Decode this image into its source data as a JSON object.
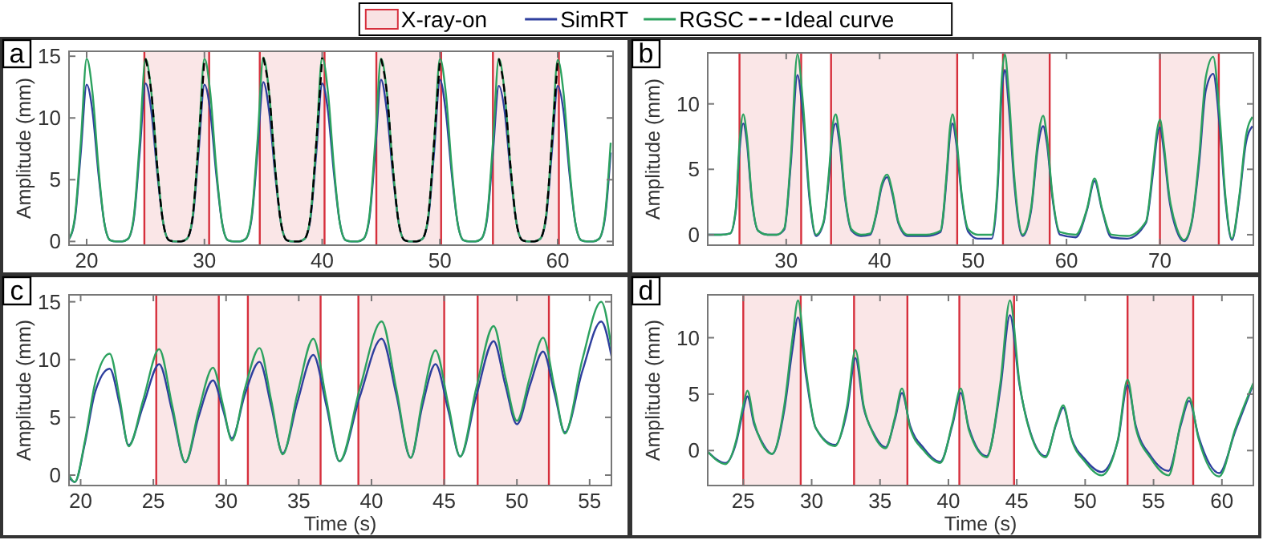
{
  "chart_data": [
    {
      "type": "line",
      "title": "a",
      "ylabel": "Amplitude (mm)",
      "legend": "top",
      "xlim": [
        18.5,
        64.7
      ],
      "xticks": [
        20,
        30,
        40,
        50,
        60
      ],
      "ylim": [
        -0.3,
        15.4
      ],
      "yticks": [
        0,
        5,
        10,
        15
      ],
      "x": [
        18.5,
        19,
        19.5,
        20,
        20.5,
        21,
        21.5,
        22,
        22.5,
        23,
        23.5,
        24,
        24.5,
        25,
        25.5,
        26,
        26.5,
        27,
        27.5,
        28,
        28.5,
        29,
        29.5,
        30,
        30.5,
        31,
        31.5,
        32,
        32.5,
        33,
        33.5,
        34,
        34.5,
        35,
        35.5,
        36,
        36.5,
        37,
        37.5,
        38,
        38.5,
        39,
        39.5,
        40,
        40.5,
        41,
        41.5,
        42,
        42.5,
        43,
        43.5,
        44,
        44.5,
        45,
        45.5,
        46,
        46.5,
        47,
        47.5,
        48,
        48.5,
        49,
        49.5,
        50,
        50.5,
        51,
        51.5,
        52,
        52.5,
        53,
        53.5,
        54,
        54.5,
        55,
        55.5,
        56,
        56.5,
        57,
        57.5,
        58,
        58.5,
        59,
        59.5,
        60,
        60.5,
        61,
        61.5,
        62,
        62.5,
        63,
        63.5,
        64,
        64.5
      ],
      "bands": [
        {
          "axis": "x",
          "from": 24.9,
          "to": 30.4,
          "label": "X-ray-on",
          "color": "#d62f3c"
        },
        {
          "axis": "x",
          "from": 34.7,
          "to": 40.2,
          "color": "#d62f3c"
        },
        {
          "axis": "x",
          "from": 44.6,
          "to": 50.1,
          "color": "#d62f3c"
        },
        {
          "axis": "x",
          "from": 54.5,
          "to": 60.1,
          "color": "#d62f3c"
        }
      ],
      "series": [
        {
          "name": "SimRT",
          "color": "#2e3f9e",
          "values": [
            0.2,
            1.8,
            7.2,
            12.7,
            10.5,
            5.5,
            1.5,
            0.1,
            0,
            0,
            0.2,
            1.8,
            7.2,
            12.8,
            10.5,
            5.5,
            1.5,
            0.1,
            0,
            0,
            0.2,
            1.8,
            7.2,
            12.7,
            10.5,
            5.5,
            1.5,
            0.1,
            0,
            0,
            0.2,
            1.8,
            7.2,
            12.9,
            10.5,
            5.5,
            1.5,
            0.1,
            0,
            0,
            0.2,
            1.8,
            7.2,
            12.8,
            10.5,
            5.5,
            1.5,
            0.1,
            0,
            0,
            0.2,
            1.8,
            7.2,
            13.1,
            10.5,
            5.5,
            1.5,
            0.1,
            0,
            0,
            0.2,
            1.8,
            7.2,
            13.1,
            10.5,
            5.5,
            1.5,
            0.1,
            0,
            0,
            0.2,
            1.8,
            7.2,
            12.6,
            10.5,
            5.5,
            1.5,
            0.1,
            0,
            0,
            0.2,
            1.8,
            7.2,
            12.6,
            10.5,
            5.5,
            1.5,
            0.1,
            0,
            0,
            0.2,
            1.8,
            7.2
          ]
        },
        {
          "name": "RGSC",
          "color": "#2ca25f",
          "values": [
            0.2,
            2,
            8,
            14.8,
            12,
            6,
            1.5,
            0.1,
            0,
            0,
            0.2,
            2,
            8,
            14.8,
            12,
            6,
            1.5,
            0.1,
            0,
            0,
            0.2,
            2,
            8,
            14.8,
            12,
            6,
            1.5,
            0.1,
            0,
            0,
            0.2,
            2,
            8,
            14.9,
            12,
            6,
            1.5,
            0.1,
            0,
            0,
            0.2,
            2,
            8,
            14.9,
            12,
            6,
            1.5,
            0.1,
            0,
            0,
            0.2,
            2,
            8,
            14.8,
            12,
            6,
            1.5,
            0.1,
            0,
            0,
            0.2,
            2,
            8,
            14.8,
            12,
            6,
            1.5,
            0.1,
            0,
            0,
            0.2,
            2,
            8,
            14.8,
            12,
            6,
            1.5,
            0.1,
            0,
            0,
            0.2,
            2,
            8,
            14.7,
            12,
            6,
            1.5,
            0.1,
            0,
            0,
            0.2,
            2,
            8
          ]
        },
        {
          "name": "Ideal curve",
          "color": "#000000",
          "line_style": "dashed",
          "values": [
            null,
            null,
            null,
            null,
            null,
            null,
            null,
            null,
            null,
            null,
            null,
            null,
            null,
            14.8,
            12,
            6,
            1.5,
            0.1,
            0,
            0,
            0.2,
            2,
            8,
            14.8,
            null,
            null,
            null,
            null,
            null,
            null,
            null,
            null,
            null,
            14.9,
            12,
            6,
            1.5,
            0.1,
            0,
            0,
            0.2,
            2,
            8,
            14.9,
            null,
            null,
            null,
            null,
            null,
            null,
            null,
            null,
            null,
            14.8,
            12,
            6,
            1.5,
            0.1,
            0,
            0,
            0.2,
            2,
            8,
            14.8,
            null,
            null,
            null,
            null,
            null,
            null,
            null,
            null,
            null,
            14.8,
            12,
            6,
            1.5,
            0.1,
            0,
            0,
            0.2,
            2,
            8,
            14.7,
            null,
            null,
            null,
            null,
            null,
            null,
            null,
            null,
            null
          ]
        }
      ]
    },
    {
      "type": "line",
      "title": "b",
      "ylabel": "Amplitude (mm)",
      "xlim": [
        21.6,
        80
      ],
      "xticks": [
        30,
        40,
        50,
        60,
        70
      ],
      "ylim": [
        -0.8,
        13.9
      ],
      "yticks": [
        0,
        5,
        10
      ],
      "x": [
        21.6,
        23,
        24,
        24.6,
        25.0,
        25.4,
        25.8,
        26.3,
        27,
        28,
        29,
        29.8,
        30.5,
        31.2,
        31.8,
        32.5,
        33.2,
        34,
        34.6,
        35.0,
        35.3,
        35.7,
        36.3,
        37,
        38,
        39,
        39.6,
        40.2,
        40.8,
        41.4,
        42,
        43,
        45,
        46.5,
        47.2,
        47.5,
        47.8,
        48.2,
        48.8,
        49.5,
        50.5,
        52,
        52.7,
        53.0,
        53.4,
        53.8,
        54.4,
        55.3,
        56.2,
        56.9,
        57.2,
        57.5,
        57.9,
        58.5,
        59.3,
        61,
        62.2,
        63.0,
        63.8,
        64.8,
        66.5,
        68.5,
        69.3,
        69.7,
        70.0,
        70.4,
        71,
        71.8,
        72.6,
        73.4,
        74.2,
        74.9,
        75.7,
        76.4,
        77.0,
        77.7,
        78.5,
        79.2,
        79.9
      ],
      "bands": [
        {
          "axis": "x",
          "from": 25.0,
          "to": 31.6,
          "color": "#d62f3c"
        },
        {
          "axis": "x",
          "from": 34.8,
          "to": 48.3,
          "color": "#d62f3c"
        },
        {
          "axis": "x",
          "from": 53.2,
          "to": 58.2,
          "color": "#d62f3c"
        },
        {
          "axis": "x",
          "from": 70.0,
          "to": 76.3,
          "color": "#d62f3c"
        }
      ],
      "series": [
        {
          "color": "#2e3f9e",
          "values": [
            0,
            0,
            0.1,
            1.8,
            6.4,
            8.5,
            7,
            2.8,
            0.3,
            0,
            0,
            0.4,
            5.5,
            12.2,
            9,
            2.7,
            -0.1,
            0.9,
            4.6,
            7.9,
            8.5,
            7,
            2.8,
            0.3,
            -0.1,
            0,
            1.4,
            3.6,
            4.4,
            3.0,
            0.9,
            -0.1,
            -0.1,
            0.2,
            4.6,
            7.4,
            8.5,
            7,
            2.8,
            0.2,
            -0.3,
            -0.3,
            4.5,
            10,
            12.6,
            10,
            4,
            -0.1,
            1.8,
            6.5,
            7.8,
            8.3,
            7,
            2.8,
            0,
            -0.2,
            1.9,
            4.1,
            1.9,
            -0.2,
            -0.3,
            0.9,
            5,
            7.5,
            8.2,
            6.5,
            2.7,
            0.3,
            -0.5,
            0.9,
            5.5,
            11,
            12.3,
            8.2,
            2.7,
            -0.4,
            2.8,
            7,
            8.3
          ]
        },
        {
          "color": "#2ca25f",
          "values": [
            0,
            0,
            0.1,
            2,
            7,
            9.2,
            7.5,
            3,
            0.3,
            0,
            0,
            0.5,
            6,
            13.8,
            10,
            3,
            0,
            1,
            5,
            8.5,
            9.2,
            7.5,
            3,
            0.4,
            0,
            0.1,
            1.5,
            3.8,
            4.6,
            3.2,
            1,
            0,
            0,
            0.3,
            5,
            8,
            9.2,
            7.5,
            3,
            0.4,
            0,
            0,
            5,
            11,
            13.8,
            11,
            4.5,
            0,
            2,
            7,
            8.5,
            9.1,
            7.5,
            3,
            0.2,
            0,
            2,
            4.3,
            2,
            0,
            -0.1,
            1,
            5.5,
            8,
            8.8,
            7,
            3,
            0.5,
            -0.4,
            1,
            6,
            12,
            13.6,
            9,
            3,
            -0.3,
            3,
            7.5,
            9.0
          ]
        }
      ]
    },
    {
      "type": "line",
      "title": "c",
      "xlabel": "Time (s)",
      "ylabel": "Amplitude (mm)",
      "xlim": [
        19.2,
        56.5
      ],
      "xticks": [
        20,
        25,
        30,
        35,
        40,
        45,
        50,
        55
      ],
      "ylim": [
        -0.9,
        15.6
      ],
      "yticks": [
        0,
        5,
        10,
        15
      ],
      "x": [
        19.2,
        19.6,
        20.3,
        21.0,
        22.0,
        22.7,
        23.3,
        24.3,
        25.4,
        26.3,
        27.2,
        28.1,
        29.1,
        29.8,
        30.4,
        31.3,
        32.3,
        33.1,
        33.9,
        34.9,
        36.0,
        36.9,
        37.8,
        39.2,
        40.7,
        41.7,
        42.7,
        43.5,
        44.4,
        45.3,
        46.1,
        47.2,
        48.4,
        49.2,
        50.0,
        50.9,
        51.8,
        52.6,
        53.3,
        54.5,
        55.8,
        56.5
      ],
      "bands": [
        {
          "axis": "x",
          "from": 25.2,
          "to": 29.5,
          "color": "#d62f3c"
        },
        {
          "axis": "x",
          "from": 31.5,
          "to": 36.5,
          "color": "#d62f3c"
        },
        {
          "axis": "x",
          "from": 39.1,
          "to": 45.0,
          "color": "#d62f3c"
        },
        {
          "axis": "x",
          "from": 47.3,
          "to": 52.2,
          "color": "#d62f3c"
        }
      ],
      "series": [
        {
          "color": "#2e3f9e",
          "values": [
            -0.2,
            -0.6,
            2.8,
            7.2,
            9.2,
            6,
            2.6,
            6,
            9.6,
            5.5,
            1.1,
            5,
            8.2,
            5.6,
            3.2,
            7,
            9.8,
            6,
            1.9,
            6.3,
            10.4,
            6,
            1.2,
            6.8,
            11.8,
            7,
            1.5,
            6,
            9.6,
            5.5,
            1.6,
            6.8,
            11.6,
            7.8,
            4.4,
            7.8,
            10.7,
            7,
            3.7,
            9,
            13.3,
            10.3
          ]
        },
        {
          "color": "#2ca25f",
          "values": [
            0,
            -0.6,
            3,
            8,
            10.5,
            6.5,
            2.5,
            6.5,
            10.9,
            6,
            1.1,
            5.5,
            9.3,
            6,
            3.0,
            7.5,
            11,
            6.5,
            1.8,
            7,
            11.8,
            6.5,
            1.2,
            7.5,
            13.3,
            7.5,
            1.5,
            6.5,
            10.8,
            6,
            1.6,
            7.5,
            12.9,
            8.5,
            4.7,
            8.5,
            11.9,
            7.5,
            3.6,
            10,
            15,
            11
          ]
        }
      ]
    },
    {
      "type": "line",
      "title": "d",
      "xlabel": "Time (s)",
      "ylabel": "Amplitude (mm)",
      "xlim": [
        22.4,
        62.3
      ],
      "xticks": [
        25,
        30,
        35,
        40,
        45,
        50,
        55,
        60
      ],
      "ylim": [
        -3.1,
        13.8
      ],
      "yticks": [
        0,
        5,
        10
      ],
      "x": [
        22.4,
        23.7,
        24.5,
        25.0,
        25.3,
        25.8,
        26.3,
        27.1,
        28.0,
        28.6,
        29.0,
        29.6,
        30.3,
        31.7,
        32.6,
        33.2,
        33.8,
        34.5,
        35.4,
        36.1,
        36.6,
        37.2,
        38.2,
        39.4,
        40.3,
        40.9,
        41.5,
        42.8,
        43.8,
        44.5,
        45.2,
        46.0,
        47.1,
        47.9,
        48.4,
        49.0,
        50.0,
        51.2,
        52.4,
        53.1,
        53.7,
        54.8,
        56.1,
        57.0,
        57.6,
        58.3,
        59.8,
        61.0,
        62.3
      ],
      "bands": [
        {
          "axis": "x",
          "from": 25.0,
          "to": 29.2,
          "color": "#d62f3c"
        },
        {
          "axis": "x",
          "from": 33.1,
          "to": 37.0,
          "color": "#d62f3c"
        },
        {
          "axis": "x",
          "from": 40.8,
          "to": 44.8,
          "color": "#d62f3c"
        },
        {
          "axis": "x",
          "from": 53.1,
          "to": 57.9,
          "color": "#d62f3c"
        }
      ],
      "series": [
        {
          "color": "#2e3f9e",
          "values": [
            -0.1,
            -1.1,
            0.8,
            3.6,
            4.8,
            2.3,
            0.9,
            -0.3,
            3.6,
            9,
            11.8,
            6.5,
            2,
            0.5,
            3.6,
            8.2,
            3.8,
            1.6,
            0.3,
            2.8,
            5.1,
            2.2,
            0.2,
            -1.0,
            2.3,
            5.1,
            2,
            -0.5,
            5.5,
            12,
            5.8,
            1.6,
            -0.5,
            2.4,
            3.8,
            1.1,
            -0.8,
            -1.9,
            0.9,
            5.8,
            2.2,
            -0.5,
            -1.8,
            2.3,
            4.4,
            1.2,
            -2.0,
            1.8,
            5.9
          ]
        },
        {
          "color": "#2ca25f",
          "values": [
            -0.1,
            -1.2,
            1,
            4,
            5.3,
            2.5,
            0.8,
            -0.3,
            4,
            10,
            13.3,
            7,
            2,
            0.4,
            4,
            8.9,
            4,
            1.5,
            0.2,
            3,
            5.5,
            2,
            0,
            -1.1,
            2.5,
            5.5,
            1.8,
            -0.6,
            6,
            13.3,
            6,
            1.5,
            -0.6,
            2.5,
            4,
            1,
            -1,
            -2.2,
            1,
            6.3,
            2,
            -0.7,
            -2.2,
            2.5,
            4.7,
            1,
            -2.3,
            2,
            6
          ]
        }
      ]
    }
  ]
}
